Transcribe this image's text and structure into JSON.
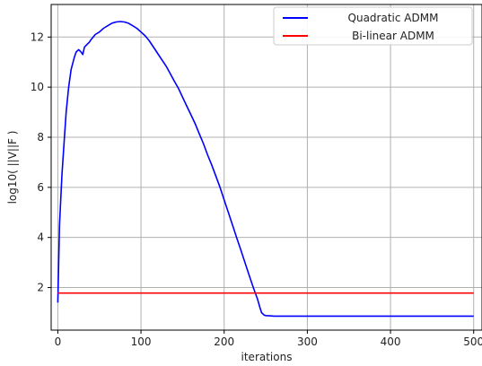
{
  "chart_data": {
    "type": "line",
    "xlabel": "iterations",
    "ylabel": "log10( ||V||F )",
    "xlim": [
      -8,
      510
    ],
    "ylim": [
      0.3,
      13.3
    ],
    "xticks": [
      0,
      100,
      200,
      300,
      400,
      500
    ],
    "yticks": [
      2,
      4,
      6,
      8,
      10,
      12
    ],
    "grid": true,
    "legend_position": "top-right",
    "series": [
      {
        "name": "Quadratic ADMM",
        "color": "#0000ff",
        "x": [
          0,
          2,
          5,
          8,
          10,
          13,
          16,
          20,
          22,
          25,
          28,
          30,
          32,
          35,
          38,
          40,
          45,
          50,
          55,
          60,
          65,
          70,
          75,
          80,
          85,
          90,
          95,
          100,
          105,
          110,
          115,
          120,
          125,
          130,
          135,
          140,
          145,
          150,
          155,
          160,
          165,
          170,
          175,
          180,
          185,
          190,
          195,
          200,
          205,
          210,
          215,
          220,
          225,
          230,
          235,
          240,
          243,
          245,
          248,
          250,
          255,
          260,
          300,
          400,
          500
        ],
        "y": [
          1.4,
          4.5,
          6.5,
          8.0,
          9.0,
          10.0,
          10.7,
          11.2,
          11.4,
          11.5,
          11.4,
          11.3,
          11.6,
          11.7,
          11.8,
          11.9,
          12.1,
          12.2,
          12.35,
          12.45,
          12.55,
          12.6,
          12.62,
          12.6,
          12.55,
          12.45,
          12.35,
          12.2,
          12.05,
          11.85,
          11.6,
          11.35,
          11.1,
          10.85,
          10.55,
          10.25,
          9.95,
          9.6,
          9.25,
          8.9,
          8.55,
          8.15,
          7.75,
          7.3,
          6.9,
          6.45,
          6.0,
          5.5,
          5.0,
          4.5,
          4.0,
          3.5,
          3.0,
          2.5,
          2.0,
          1.55,
          1.2,
          1.0,
          0.9,
          0.88,
          0.87,
          0.86,
          0.86,
          0.86,
          0.86
        ]
      },
      {
        "name": "Bi-linear ADMM",
        "color": "#ff0000",
        "x": [
          0,
          500
        ],
        "y": [
          1.78,
          1.78
        ]
      }
    ]
  }
}
